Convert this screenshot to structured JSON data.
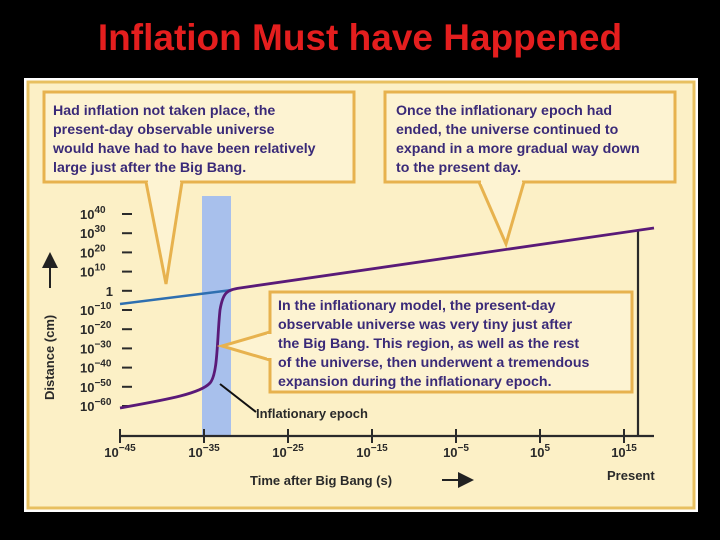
{
  "slide_title": "Inflation Must have Happened",
  "colors": {
    "title": "#e41e1e",
    "panel": "#fcf0c6",
    "panel_border": "#e8c060",
    "callout_border": "#e7b24e",
    "text": "#3a2a78",
    "inflation_band": "#a8c0ec",
    "purple_curve": "#5a1a78",
    "blue_curve": "#2e6fb0"
  },
  "callouts": {
    "no_inflation": {
      "lines": [
        "Had inflation not taken place, the",
        "present-day observable universe",
        "would have had to have been relatively",
        "large just after the Big Bang."
      ]
    },
    "after_epoch": {
      "lines": [
        "Once the inflationary epoch had",
        "ended, the universe continued to",
        "expand in a more gradual way down",
        "to the present day."
      ]
    },
    "inflationary_model": {
      "lines": [
        "In the inflationary model, the present-day",
        "observable universe was very tiny just after",
        "the Big Bang. This region, as well as the rest",
        "of the universe, then underwent a tremendous",
        "expansion during the inflationary epoch."
      ]
    }
  },
  "axes": {
    "y_label": "Distance (cm)",
    "x_label": "Time after Big Bang (s)",
    "present_label": "Present",
    "y_ticks": [
      {
        "base": "10",
        "exp": "40"
      },
      {
        "base": "10",
        "exp": "30"
      },
      {
        "base": "10",
        "exp": "20"
      },
      {
        "base": "10",
        "exp": "10"
      },
      {
        "base": "1",
        "exp": ""
      },
      {
        "base": "10",
        "exp": "−10"
      },
      {
        "base": "10",
        "exp": "−20"
      },
      {
        "base": "10",
        "exp": "−30"
      },
      {
        "base": "10",
        "exp": "−40"
      },
      {
        "base": "10",
        "exp": "−50"
      },
      {
        "base": "10",
        "exp": "−60"
      }
    ],
    "x_ticks": [
      {
        "base": "10",
        "exp": "−45"
      },
      {
        "base": "10",
        "exp": "−35"
      },
      {
        "base": "10",
        "exp": "−25"
      },
      {
        "base": "10",
        "exp": "−15"
      },
      {
        "base": "10",
        "exp": "−5"
      },
      {
        "base": "10",
        "exp": "5"
      },
      {
        "base": "10",
        "exp": "15"
      }
    ]
  },
  "epoch_label": "Inflationary epoch"
}
